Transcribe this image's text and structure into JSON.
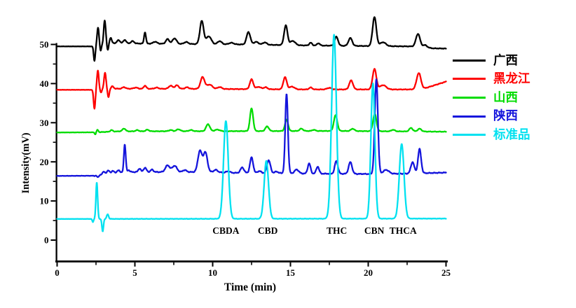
{
  "figure": {
    "title": "",
    "background": "#ffffff",
    "plot_border": "#000000"
  },
  "chart_data": {
    "type": "line",
    "subtype": "chromatogram-overlay",
    "title": "",
    "xlabel": "Time (min)",
    "ylabel": "Intensity(mV)",
    "xlim": [
      0,
      25
    ],
    "ylim": [
      0,
      50
    ],
    "x_ticks": [
      0,
      5,
      10,
      15,
      20,
      25
    ],
    "x_minor_ticks": [
      2.5,
      7.5,
      12.5,
      17.5,
      22.5
    ],
    "y_ticks": [
      0,
      10,
      20,
      30,
      40,
      50
    ],
    "y_minor_ticks": [
      5,
      15,
      25,
      35,
      45
    ],
    "grid": false,
    "legend_position": "right",
    "series": [
      {
        "id": "guangxi",
        "label": "广西",
        "color": "#000000",
        "baseline_mV": 49.5,
        "noise": 0.09,
        "drift": [
          [
            0,
            0
          ],
          [
            2.3,
            0
          ],
          [
            3.6,
            0.8
          ],
          [
            5,
            0.75
          ],
          [
            9,
            0.6
          ],
          [
            12,
            0.5
          ],
          [
            16,
            0.25
          ],
          [
            20,
            0.1
          ],
          [
            23,
            0
          ],
          [
            24.2,
            -0.5
          ],
          [
            25,
            -0.55
          ]
        ],
        "peaks": [
          [
            2.4,
            -3.8,
            0.05
          ],
          [
            2.63,
            4.6,
            0.06
          ],
          [
            2.8,
            -1.4,
            0.045
          ],
          [
            3.06,
            6.2,
            0.065
          ],
          [
            3.26,
            -1.6,
            0.05
          ],
          [
            3.44,
            1.5,
            0.07
          ],
          [
            3.95,
            0.8,
            0.1
          ],
          [
            4.35,
            0.9,
            0.09
          ],
          [
            4.85,
            0.6,
            0.1
          ],
          [
            5.65,
            2.9,
            0.06
          ],
          [
            6.3,
            0.5,
            0.12
          ],
          [
            7.1,
            1.2,
            0.11
          ],
          [
            7.55,
            1.4,
            0.13
          ],
          [
            8.3,
            0.5,
            0.13
          ],
          [
            9.3,
            5.9,
            0.12
          ],
          [
            9.75,
            2.0,
            0.16
          ],
          [
            10.45,
            0.8,
            0.13
          ],
          [
            11.2,
            0.4,
            0.15
          ],
          [
            12.3,
            3.2,
            0.12
          ],
          [
            12.8,
            0.7,
            0.15
          ],
          [
            13.35,
            0.6,
            0.13
          ],
          [
            14.7,
            5.0,
            0.11
          ],
          [
            15.15,
            1.1,
            0.16
          ],
          [
            16.3,
            0.7,
            0.09
          ],
          [
            16.8,
            0.6,
            0.09
          ],
          [
            17.95,
            2.3,
            0.11
          ],
          [
            18.85,
            2.0,
            0.12
          ],
          [
            20.4,
            7.4,
            0.12
          ],
          [
            20.95,
            1.0,
            0.18
          ],
          [
            23.2,
            3.3,
            0.13
          ],
          [
            23.65,
            0.6,
            0.13
          ]
        ]
      },
      {
        "id": "heilongjiang",
        "label": "黑龙江",
        "color": "#fe0000",
        "baseline_mV": 38.4,
        "noise": 0.09,
        "drift": [
          [
            0,
            0
          ],
          [
            2.3,
            0
          ],
          [
            3.6,
            0.3
          ],
          [
            9,
            0.25
          ],
          [
            16,
            0.1
          ],
          [
            23.4,
            0.1
          ],
          [
            25,
            2.1
          ]
        ],
        "peaks": [
          [
            2.4,
            -4.8,
            0.055
          ],
          [
            2.62,
            4.8,
            0.06
          ],
          [
            2.82,
            -0.8,
            0.05
          ],
          [
            3.08,
            4.2,
            0.065
          ],
          [
            3.3,
            -2.1,
            0.055
          ],
          [
            3.55,
            0.6,
            0.08
          ],
          [
            4.3,
            0.4,
            0.1
          ],
          [
            5.05,
            0.3,
            0.12
          ],
          [
            5.65,
            0.8,
            0.08
          ],
          [
            6.4,
            0.3,
            0.12
          ],
          [
            7.3,
            0.8,
            0.12
          ],
          [
            7.7,
            0.9,
            0.12
          ],
          [
            8.35,
            0.4,
            0.12
          ],
          [
            9.35,
            3.0,
            0.13
          ],
          [
            9.8,
            1.1,
            0.18
          ],
          [
            10.45,
            0.5,
            0.13
          ],
          [
            12.5,
            2.5,
            0.11
          ],
          [
            12.95,
            0.6,
            0.15
          ],
          [
            13.4,
            0.5,
            0.12
          ],
          [
            14.65,
            3.1,
            0.11
          ],
          [
            15.1,
            0.7,
            0.16
          ],
          [
            16.3,
            0.5,
            0.1
          ],
          [
            17.5,
            0.4,
            0.15
          ],
          [
            18.9,
            2.3,
            0.12
          ],
          [
            20.4,
            5.2,
            0.12
          ],
          [
            20.95,
            1.1,
            0.2
          ],
          [
            23.25,
            4.2,
            0.14
          ]
        ]
      },
      {
        "id": "shanxi",
        "label": "山西",
        "color": "#00dc00",
        "baseline_mV": 27.5,
        "noise": 0.08,
        "drift": [
          [
            0,
            0
          ],
          [
            2.5,
            0.05
          ],
          [
            4,
            0.3
          ],
          [
            12,
            0.35
          ],
          [
            18,
            0.4
          ],
          [
            25,
            0.2
          ]
        ],
        "peaks": [
          [
            2.45,
            -0.5,
            0.04
          ],
          [
            2.6,
            0.6,
            0.05
          ],
          [
            3.5,
            0.4,
            0.08
          ],
          [
            4.3,
            0.7,
            0.1
          ],
          [
            5.15,
            0.3,
            0.1
          ],
          [
            5.8,
            0.4,
            0.1
          ],
          [
            7.3,
            0.3,
            0.12
          ],
          [
            7.8,
            0.5,
            0.12
          ],
          [
            8.6,
            0.3,
            0.12
          ],
          [
            9.7,
            1.8,
            0.12
          ],
          [
            10.3,
            0.4,
            0.15
          ],
          [
            12.5,
            5.8,
            0.1
          ],
          [
            13.5,
            1.2,
            0.11
          ],
          [
            14.75,
            2.9,
            0.1
          ],
          [
            15.7,
            0.6,
            0.11
          ],
          [
            16.5,
            0.3,
            0.1
          ],
          [
            17.9,
            4.0,
            0.11
          ],
          [
            19.0,
            0.6,
            0.11
          ],
          [
            20.42,
            4.4,
            0.11
          ],
          [
            21.6,
            0.4,
            0.11
          ],
          [
            22.75,
            0.9,
            0.11
          ],
          [
            23.3,
            0.7,
            0.12
          ]
        ]
      },
      {
        "id": "shaanxi",
        "label": "陕西",
        "color": "#1414dc",
        "baseline_mV": 16.4,
        "noise": 0.13,
        "drift": [
          [
            0,
            0
          ],
          [
            2.5,
            0.05
          ],
          [
            3.2,
            0.6
          ],
          [
            4.8,
            1.0
          ],
          [
            10,
            1.0
          ],
          [
            11,
            0.8
          ],
          [
            14,
            0.7
          ],
          [
            16.2,
            0.6
          ],
          [
            20,
            0.5
          ],
          [
            22.5,
            0.6
          ],
          [
            25,
            0.85
          ]
        ],
        "peaks": [
          [
            2.62,
            -0.5,
            0.05
          ],
          [
            3.0,
            0.7,
            0.07
          ],
          [
            3.3,
            0.8,
            0.08
          ],
          [
            3.6,
            0.6,
            0.08
          ],
          [
            3.95,
            0.7,
            0.08
          ],
          [
            4.35,
            7.2,
            0.06
          ],
          [
            4.6,
            0.5,
            0.08
          ],
          [
            5.3,
            0.9,
            0.08
          ],
          [
            5.65,
            1.1,
            0.09
          ],
          [
            6.1,
            0.6,
            0.09
          ],
          [
            7.1,
            1.7,
            0.14
          ],
          [
            7.55,
            1.6,
            0.15
          ],
          [
            8.2,
            0.5,
            0.12
          ],
          [
            9.18,
            5.4,
            0.13
          ],
          [
            9.53,
            5.0,
            0.13
          ],
          [
            10.2,
            0.6,
            0.12
          ],
          [
            11.0,
            0.4,
            0.12
          ],
          [
            11.9,
            1.4,
            0.11
          ],
          [
            12.5,
            4.0,
            0.1
          ],
          [
            13.0,
            0.5,
            0.12
          ],
          [
            13.6,
            3.3,
            0.11
          ],
          [
            14.1,
            0.4,
            0.12
          ],
          [
            14.75,
            20.3,
            0.085
          ],
          [
            15.4,
            1.0,
            0.13
          ],
          [
            16.2,
            2.6,
            0.09
          ],
          [
            16.75,
            1.8,
            0.09
          ],
          [
            17.95,
            3.3,
            0.1
          ],
          [
            18.85,
            3.0,
            0.11
          ],
          [
            20.52,
            24.2,
            0.1
          ],
          [
            21.15,
            1.0,
            0.18
          ],
          [
            22.85,
            2.9,
            0.11
          ],
          [
            23.3,
            6.2,
            0.1
          ]
        ]
      },
      {
        "id": "standard",
        "label": "标准品",
        "color": "#00e1f0",
        "baseline_mV": 5.4,
        "noise": 0.06,
        "drift": [
          [
            0,
            0
          ],
          [
            25,
            0.1
          ]
        ],
        "peaks": [
          [
            2.3,
            -0.8,
            0.04
          ],
          [
            2.55,
            9.3,
            0.055
          ],
          [
            2.93,
            -3.2,
            0.05
          ],
          [
            3.25,
            1.2,
            0.06
          ],
          [
            10.85,
            25.0,
            0.15
          ],
          [
            13.45,
            14.8,
            0.14
          ],
          [
            17.8,
            47.0,
            0.155
          ],
          [
            20.3,
            34.6,
            0.13
          ],
          [
            22.15,
            19.1,
            0.15
          ]
        ]
      }
    ],
    "peak_annotations": [
      {
        "label": "CBDA",
        "t": 10.85,
        "dx": 0
      },
      {
        "label": "CBD",
        "t": 13.45,
        "dx": 2
      },
      {
        "label": "THC",
        "t": 17.8,
        "dx": 4
      },
      {
        "label": "CBN",
        "t": 20.3,
        "dx": 2
      },
      {
        "label": "THCA",
        "t": 22.15,
        "dx": 2
      }
    ]
  }
}
